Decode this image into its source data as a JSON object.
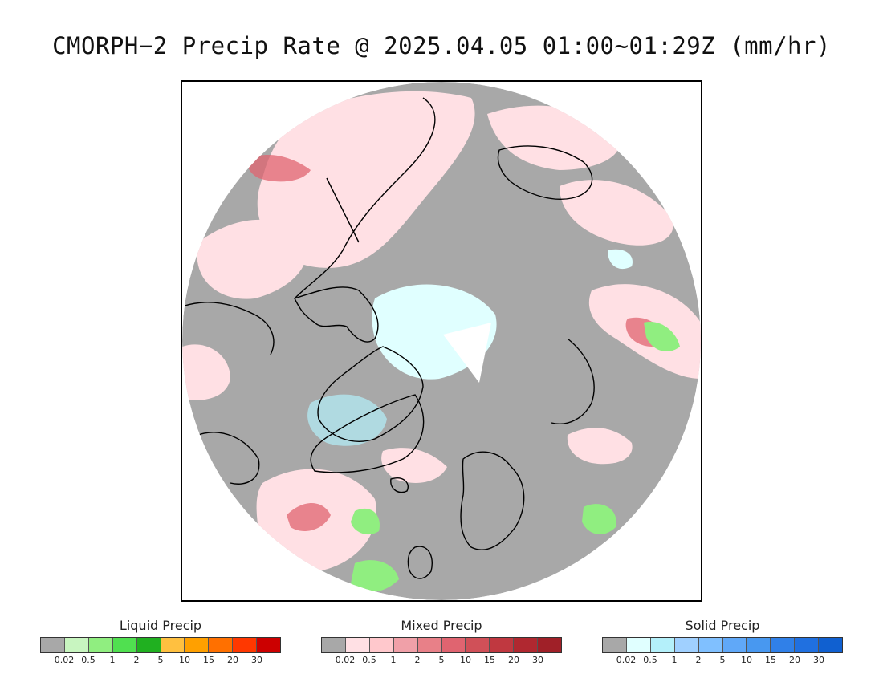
{
  "title": "CMORPH−2 Precip Rate @ 2025.04.05 01:00~01:29Z (mm/hr)",
  "map": {
    "projection": "north-polar-stereographic",
    "colors": {
      "frame": "#000000",
      "background": "#ffffff",
      "no_precip": "#a8a8a8",
      "coastline": "#000000"
    }
  },
  "legends": [
    {
      "key": "liquid",
      "title": "Liquid Precip",
      "colors": [
        "#a8a8a8",
        "#c8f5c0",
        "#90ee80",
        "#50e050",
        "#20b020",
        "#ffc040",
        "#ffa000",
        "#ff7000",
        "#ff3800",
        "#cc0000"
      ],
      "ticks": [
        "0.02",
        "0.5",
        "1",
        "2",
        "5",
        "10",
        "15",
        "20",
        "30"
      ]
    },
    {
      "key": "mixed",
      "title": "Mixed Precip",
      "colors": [
        "#a8a8a8",
        "#ffe0e4",
        "#ffc8cc",
        "#f0a0a8",
        "#e88088",
        "#e06470",
        "#d05058",
        "#c03840",
        "#b02830",
        "#a02028"
      ],
      "ticks": [
        "0.02",
        "0.5",
        "1",
        "2",
        "5",
        "10",
        "15",
        "20",
        "30"
      ]
    },
    {
      "key": "solid",
      "title": "Solid Precip",
      "colors": [
        "#a8a8a8",
        "#e0ffff",
        "#b4f0fa",
        "#a0d0ff",
        "#80c0ff",
        "#60a8f8",
        "#4898f0",
        "#3080e8",
        "#2070e0",
        "#1060d0"
      ],
      "ticks": [
        "0.02",
        "0.5",
        "1",
        "2",
        "5",
        "10",
        "15",
        "20",
        "30"
      ]
    }
  ]
}
